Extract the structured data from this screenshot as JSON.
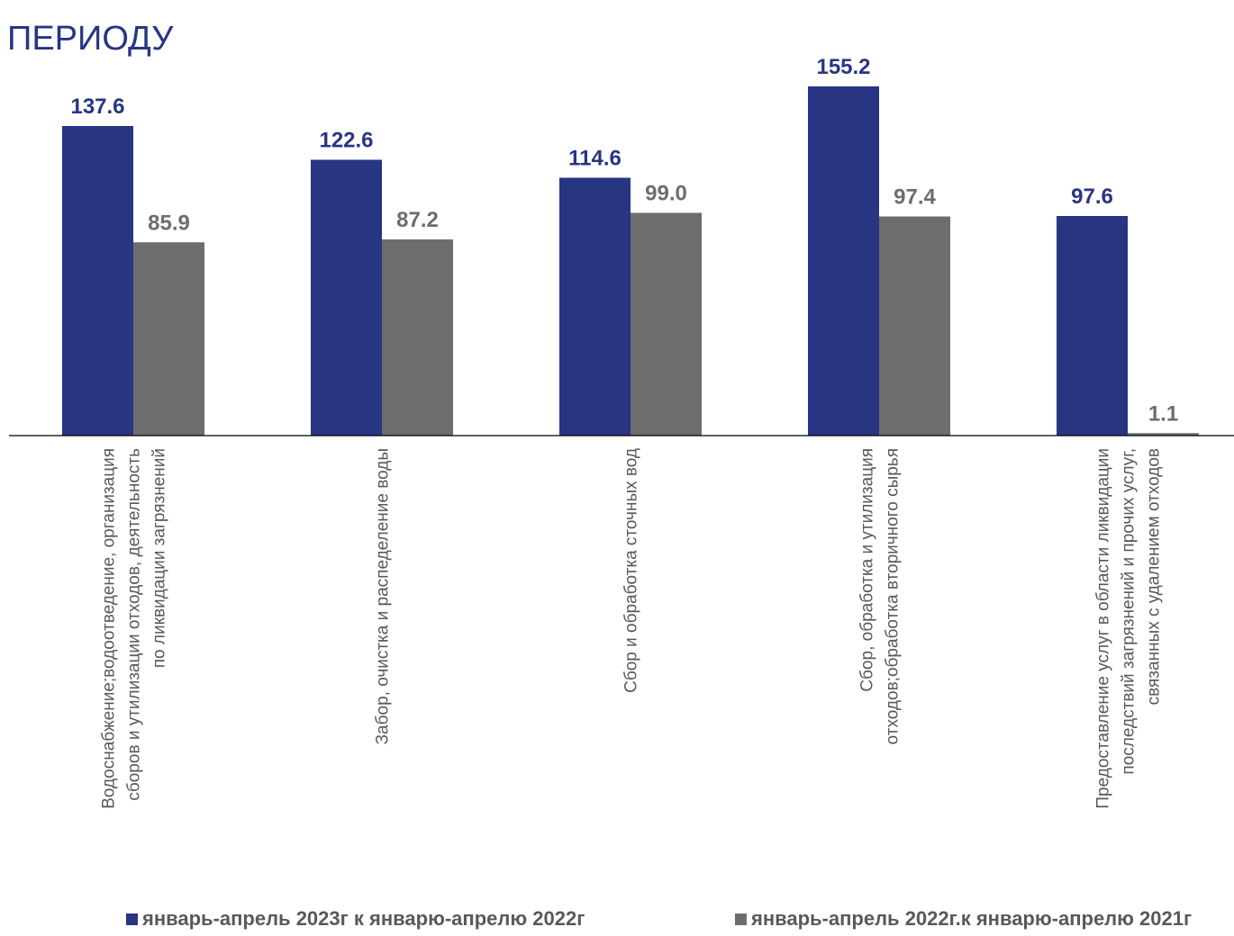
{
  "title": "ПЕРИОДУ",
  "chart_data": {
    "type": "bar",
    "title": "ПЕРИОДУ",
    "categories": [
      "Водоснабжение;водоотведение, организация|сборов и утилизации отходов, деятельность|по ликвидации загрязнений",
      "Забор, очистка и распеделение воды",
      "Сбор и обработка сточных вод",
      "Сбор, обработка и утилизация|отходов;обработка вторичного сырья",
      "Предоставление услуг в области ликвидации|последствий загрязнений и прочих услуг,|связанных с удалением отходов"
    ],
    "series": [
      {
        "name": "январь-апрель 2023г к январю-апрелю 2022г",
        "values": [
          137.6,
          122.6,
          114.6,
          155.2,
          97.6
        ],
        "labels": [
          "137.6",
          "122.6",
          "114.6",
          "155.2",
          "97.6"
        ],
        "color": "#283583"
      },
      {
        "name": "январь-апрель 2022г.к январю-апрелю 2021г",
        "values": [
          85.9,
          87.2,
          99.0,
          97.4,
          1.1
        ],
        "labels": [
          "85.9",
          "87.2",
          "99.0",
          "97.4",
          "1.1"
        ],
        "color": "#6d6d6d"
      }
    ],
    "ylim": [
      0,
      160
    ],
    "grid": false,
    "legend": "bottom",
    "label_color_series1": "#283583",
    "label_color_series2": "#6d6d6d",
    "axis_label_color": "#595959"
  }
}
